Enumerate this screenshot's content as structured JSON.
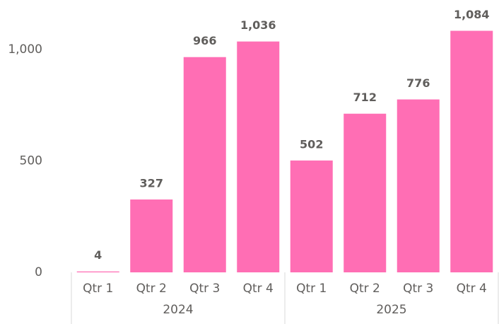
{
  "chart_data": {
    "type": "bar",
    "color": "#ff6eb4",
    "groups": [
      {
        "name": "2024",
        "categories": [
          "Qtr 1",
          "Qtr 2",
          "Qtr 3",
          "Qtr 4"
        ],
        "values": [
          4,
          327,
          966,
          1036
        ],
        "value_labels": [
          "4",
          "327",
          "966",
          "1,036"
        ]
      },
      {
        "name": "2025",
        "categories": [
          "Qtr 1",
          "Qtr 2",
          "Qtr 3",
          "Qtr 4"
        ],
        "values": [
          502,
          712,
          776,
          1084
        ],
        "value_labels": [
          "502",
          "712",
          "776",
          "1,084"
        ]
      }
    ],
    "ylim": [
      0,
      1200
    ],
    "yticks": [
      0,
      500,
      {
        "value": 1000,
        "label": "1,000"
      }
    ],
    "grid": false
  }
}
